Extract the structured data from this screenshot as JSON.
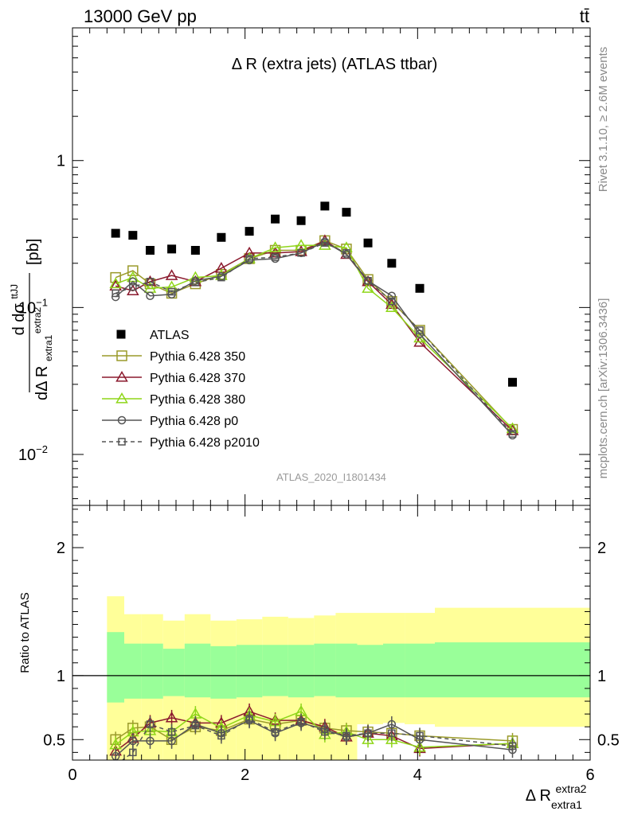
{
  "header": {
    "beam": "13000 GeV pp",
    "process": "tt̄"
  },
  "side": {
    "rivet": "Rivet 3.1.10, ≥ 2.6M events",
    "mcplots": "mcplots.cern.ch [arXiv:1306.3436]"
  },
  "chart_data": [
    {
      "type": "scatter",
      "title": "Δ R (extra jets) (ATLAS ttbar)",
      "ylabel_main": "dσ",
      "ylabel_sup": "ttJJ",
      "ylabel_den": "dΔ R",
      "ylabel_den_sub": "extra1",
      "ylabel_den_sup": "extra2",
      "ylabel_unit": "[pb]",
      "analysis": "ATLAS_2020_I1801434",
      "yscale": "log",
      "xlim": [
        0,
        6
      ],
      "ylim": [
        0.0045,
        8
      ],
      "y_ticklabels": [
        {
          "value": 1,
          "label": "1"
        },
        {
          "value": 0.1,
          "label": "10",
          "exp": "−1"
        },
        {
          "value": 0.01,
          "label": "10",
          "exp": "−2"
        }
      ],
      "x": [
        0.5,
        0.7,
        0.9,
        1.15,
        1.425,
        1.725,
        2.05,
        2.35,
        2.65,
        2.925,
        3.175,
        3.425,
        3.7,
        4.025,
        5.1
      ],
      "series": [
        {
          "name": "ATLAS",
          "color": "#000000",
          "marker": "square-filled",
          "line": "none",
          "values": [
            0.32,
            0.31,
            0.245,
            0.25,
            0.245,
            0.3,
            0.33,
            0.4,
            0.39,
            0.49,
            0.445,
            0.275,
            0.2,
            0.135,
            0.031
          ]
        },
        {
          "name": "Pythia 6.428 350",
          "color": "#9a9a2a",
          "marker": "square-open",
          "line": "solid",
          "values": [
            0.16,
            0.178,
            0.145,
            0.125,
            0.145,
            0.168,
            0.215,
            0.245,
            0.245,
            0.285,
            0.25,
            0.155,
            0.11,
            0.07,
            0.0148
          ]
        },
        {
          "name": "Pythia 6.428 370",
          "color": "#8b1a2e",
          "marker": "triangle-open",
          "line": "solid",
          "values": [
            0.14,
            0.13,
            0.15,
            0.165,
            0.15,
            0.185,
            0.235,
            0.235,
            0.24,
            0.285,
            0.23,
            0.15,
            0.105,
            0.058,
            0.0145
          ]
        },
        {
          "name": "Pythia 6.428 380",
          "color": "#8fd619",
          "marker": "triangle-open",
          "line": "solid",
          "values": [
            0.145,
            0.16,
            0.135,
            0.138,
            0.16,
            0.165,
            0.215,
            0.255,
            0.265,
            0.265,
            0.255,
            0.135,
            0.1,
            0.062,
            0.015
          ]
        },
        {
          "name": "Pythia 6.428 p0",
          "color": "#555555",
          "marker": "circle-open",
          "line": "solid",
          "values": [
            0.118,
            0.15,
            0.12,
            0.123,
            0.152,
            0.163,
            0.21,
            0.215,
            0.235,
            0.28,
            0.23,
            0.152,
            0.12,
            0.066,
            0.0135
          ]
        },
        {
          "name": "Pythia 6.428 p2010",
          "color": "#555555",
          "marker": "square-open-small",
          "line": "dashed",
          "values": [
            0.125,
            0.138,
            0.15,
            0.128,
            0.148,
            0.16,
            0.215,
            0.22,
            0.235,
            0.275,
            0.235,
            0.152,
            0.11,
            0.07,
            0.0138
          ]
        }
      ]
    },
    {
      "type": "scatter",
      "ylabel": "Ratio to ATLAS",
      "xlabel_main": "Δ R",
      "xlabel_sup": "extra2",
      "xlabel_sub": "extra1",
      "xlim": [
        0,
        6
      ],
      "ylim": [
        0.34,
        2.33
      ],
      "x_ticklabels": [
        "0",
        "2",
        "4",
        "6"
      ],
      "y_ticklabels": [
        {
          "value": 0.5,
          "label": "0.5"
        },
        {
          "value": 1,
          "label": "1"
        },
        {
          "value": 2,
          "label": "2"
        }
      ],
      "bands": {
        "bin_edges": [
          0.4,
          0.6,
          0.8,
          1.05,
          1.3,
          1.6,
          1.9,
          2.2,
          2.5,
          2.8,
          3.05,
          3.3,
          3.6,
          3.85,
          4.2,
          6.0
        ],
        "stat_syst": {
          "color": "#ffff99",
          "low": [
            0.21,
            0.24,
            0.25,
            0.27,
            0.26,
            0.28,
            0.3,
            0.32,
            0.3,
            0.29,
            0.31,
            0.62,
            0.63,
            0.62,
            0.6
          ],
          "high": [
            1.62,
            1.48,
            1.48,
            1.43,
            1.48,
            1.43,
            1.44,
            1.46,
            1.45,
            1.47,
            1.49,
            1.49,
            1.49,
            1.49,
            1.53
          ]
        },
        "stat": {
          "color": "#99ff99",
          "low": [
            0.79,
            0.82,
            0.82,
            0.84,
            0.83,
            0.82,
            0.83,
            0.84,
            0.83,
            0.84,
            0.83,
            0.83,
            0.83,
            0.83,
            0.83
          ],
          "high": [
            1.34,
            1.25,
            1.25,
            1.21,
            1.25,
            1.23,
            1.24,
            1.24,
            1.24,
            1.25,
            1.25,
            1.24,
            1.25,
            1.25,
            1.26
          ]
        }
      },
      "series": [
        {
          "name": "Pythia 6.428 350",
          "values": [
            0.5,
            0.59,
            0.6,
            0.5,
            0.6,
            0.57,
            0.66,
            0.62,
            0.65,
            0.59,
            0.57,
            0.56,
            0.55,
            0.53,
            0.49
          ]
        },
        {
          "name": "Pythia 6.428 370",
          "values": [
            0.41,
            0.51,
            0.63,
            0.67,
            0.63,
            0.63,
            0.72,
            0.65,
            0.65,
            0.6,
            0.52,
            0.55,
            0.53,
            0.43,
            0.47
          ]
        },
        {
          "name": "Pythia 6.428 380",
          "values": [
            0.46,
            0.56,
            0.57,
            0.56,
            0.7,
            0.59,
            0.69,
            0.64,
            0.72,
            0.54,
            0.56,
            0.5,
            0.5,
            0.44,
            0.47
          ]
        },
        {
          "name": "Pythia 6.428 p0",
          "values": [
            0.37,
            0.49,
            0.49,
            0.49,
            0.62,
            0.55,
            0.65,
            0.55,
            0.63,
            0.58,
            0.52,
            0.55,
            0.62,
            0.5,
            0.42
          ]
        },
        {
          "name": "Pythia 6.428 p2010",
          "values": [
            0.3,
            0.4,
            0.62,
            0.56,
            0.61,
            0.53,
            0.66,
            0.56,
            0.64,
            0.56,
            0.53,
            0.55,
            0.55,
            0.53,
            0.45
          ]
        }
      ]
    }
  ]
}
